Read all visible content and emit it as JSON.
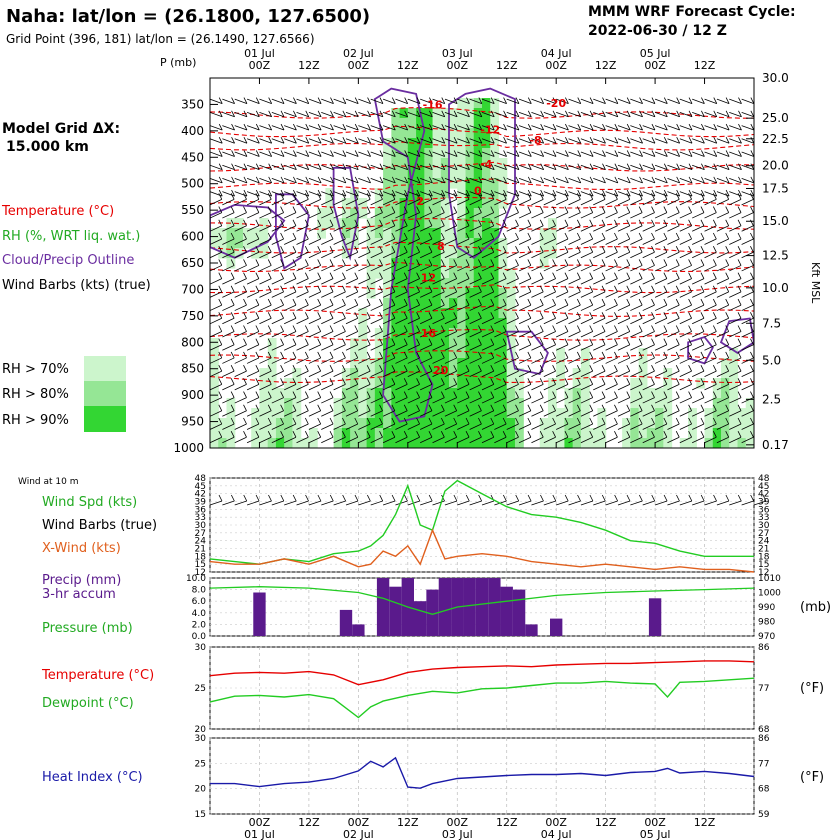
{
  "header": {
    "station": "Naha:  lat/lon = (26.1800, 127.6500)",
    "gridpoint": "Grid Point (396, 181) lat/lon = (26.1490, 127.6566)",
    "model": "MMM WRF Forecast Cycle:",
    "cycle": "2022-06-30 / 12  Z"
  },
  "time_axis": {
    "dates": [
      "01 Jul",
      "02 Jul",
      "03 Jul",
      "04 Jul",
      "05 Jul"
    ],
    "hours": [
      "00Z",
      "12Z",
      "00Z",
      "12Z",
      "00Z",
      "12Z",
      "00Z",
      "12Z",
      "00Z",
      "12Z"
    ]
  },
  "legend_left": {
    "grid_title": "Model Grid ΔX:",
    "grid_value": "15.000 km",
    "temperature": "Temperature (°C)",
    "rh": "RH (%, WRT liq. wat.)",
    "cloud": "Cloud/Precip Outline",
    "barbs": "Wind Barbs (kts) (true)",
    "rh70": "RH > 70%",
    "rh80": "RH > 80%",
    "rh90": "RH > 90%",
    "wind10m": "Wind at 10 m",
    "wind_spd": "Wind Spd (kts)",
    "wind_barbs": "Wind Barbs (true)",
    "xwind": "X-Wind (kts)",
    "precip1": "Precip (mm)",
    "precip2": "3-hr accum",
    "pressure": "Pressure (mb)",
    "temp2": "Temperature (°C)",
    "dew": "Dewpoint (°C)",
    "heat": "Heat Index (°C)"
  },
  "colors": {
    "temperature": "#e60000",
    "rh": "#22cc22",
    "cloud": "#6a2da0",
    "rh70": "#ccf5cc",
    "rh80": "#95e695",
    "rh90": "#33d633",
    "xwind": "#e0601e",
    "precip": "#5a1a8c",
    "heat": "#1a1aa8"
  },
  "chart_data": [
    {
      "type": "heatmap",
      "panel": "cross-section",
      "y_axis_label": "P (mb)",
      "y_ticks": [
        "350",
        "400",
        "450",
        "500",
        "550",
        "600",
        "650",
        "700",
        "750",
        "800",
        "850",
        "900",
        "950",
        "1000"
      ],
      "right_axis_label": "Kft MSL",
      "right_ticks": [
        "30.0",
        "25.0",
        "22.5",
        "20.0",
        "17.5",
        "15.0",
        "12.5",
        "10.0",
        "7.5",
        "5.0",
        "2.5",
        "0.17"
      ],
      "right_tick_pressure": [
        300,
        376,
        415,
        466,
        509,
        571,
        636,
        697,
        764,
        834,
        908,
        994
      ],
      "temperature_labels": [
        {
          "text": "-20",
          "hour": 72,
          "p": 355
        },
        {
          "text": "-16",
          "hour": 42,
          "p": 358
        },
        {
          "text": "-12",
          "hour": 56,
          "p": 405
        },
        {
          "text": "-8",
          "hour": 67,
          "p": 425
        },
        {
          "text": "-4",
          "hour": 55,
          "p": 470
        },
        {
          "text": "0",
          "hour": 53,
          "p": 520
        },
        {
          "text": "2",
          "hour": 39,
          "p": 540
        },
        {
          "text": "8",
          "hour": 44,
          "p": 625
        },
        {
          "text": "12",
          "hour": 41,
          "p": 685
        },
        {
          "text": "16",
          "hour": 41,
          "p": 790
        },
        {
          "text": "20",
          "hour": 44,
          "p": 860
        }
      ]
    },
    {
      "type": "line",
      "panel": "wind",
      "x_range": [
        -12,
        120
      ],
      "ylim": [
        12,
        48
      ],
      "y_ticks": [
        "48",
        "45",
        "42",
        "39",
        "36",
        "33",
        "30",
        "27",
        "24",
        "21",
        "18",
        "15",
        "12"
      ],
      "series": [
        {
          "name": "Wind Spd (kts)",
          "x": [
            -12,
            -6,
            0,
            6,
            12,
            18,
            24,
            27,
            30,
            33,
            36,
            39,
            42,
            45,
            48,
            54,
            60,
            66,
            72,
            78,
            84,
            90,
            96,
            102,
            108,
            114,
            120
          ],
          "values": [
            17,
            16,
            15,
            17,
            16,
            19,
            20,
            22,
            26,
            34,
            45,
            30,
            28,
            43,
            47,
            42,
            37,
            34,
            33,
            31,
            28,
            24,
            23,
            20,
            18,
            18,
            18
          ]
        },
        {
          "name": "X-Wind (kts)",
          "x": [
            -12,
            -6,
            0,
            6,
            12,
            18,
            24,
            27,
            30,
            33,
            36,
            39,
            42,
            45,
            48,
            54,
            60,
            66,
            72,
            78,
            84,
            90,
            96,
            102,
            108,
            114,
            120
          ],
          "values": [
            16,
            15,
            15,
            17,
            15,
            18,
            14,
            15,
            20,
            18,
            22,
            15,
            28,
            17,
            18,
            19,
            18,
            16,
            15,
            14,
            15,
            14,
            13,
            14,
            13,
            13,
            12
          ]
        }
      ]
    },
    {
      "type": "bar",
      "panel": "precip",
      "x_range": [
        -12,
        120
      ],
      "ylim": [
        0,
        10
      ],
      "y_ticks": [
        "10.0",
        "8.0",
        "6.0",
        "4.0",
        "2.0",
        "0.0"
      ],
      "right_ticks": [
        "1010",
        "1000",
        "990",
        "980",
        "970"
      ],
      "hours": [
        0,
        21,
        24,
        30,
        33,
        36,
        39,
        42,
        45,
        48,
        51,
        54,
        57,
        60,
        63,
        66,
        69,
        72,
        96
      ],
      "values": [
        7.5,
        4.5,
        2.0,
        10.0,
        8.5,
        10.0,
        6.0,
        8.0,
        10.0,
        10.0,
        10.0,
        10.0,
        10.0,
        8.5,
        8.0,
        2.0,
        0.0,
        3.0,
        6.5
      ],
      "pressure": {
        "x": [
          -12,
          0,
          12,
          24,
          30,
          36,
          42,
          48,
          60,
          72,
          84,
          96,
          108,
          120
        ],
        "values": [
          1003,
          1004,
          1003,
          1000,
          996,
          990,
          985,
          990,
          994,
          998,
          1000,
          1001,
          1002,
          1003
        ]
      }
    },
    {
      "type": "line",
      "panel": "temperature",
      "x_range": [
        -12,
        120
      ],
      "ylim": [
        20,
        30
      ],
      "y_ticks": [
        "30",
        "25",
        "20"
      ],
      "right_ticks": [
        "86",
        "77",
        "68"
      ],
      "series": [
        {
          "name": "Temperature (°C)",
          "x": [
            -12,
            -6,
            0,
            6,
            12,
            18,
            24,
            30,
            36,
            42,
            48,
            54,
            60,
            66,
            72,
            78,
            84,
            90,
            96,
            102,
            108,
            114,
            120
          ],
          "values": [
            26.5,
            26.8,
            26.9,
            26.8,
            27.0,
            26.6,
            25.4,
            26.0,
            26.9,
            27.3,
            27.5,
            27.6,
            27.7,
            27.6,
            27.8,
            27.9,
            28.0,
            28.0,
            28.1,
            28.2,
            28.3,
            28.3,
            28.2
          ]
        },
        {
          "name": "Dewpoint (°C)",
          "x": [
            -12,
            -6,
            0,
            6,
            12,
            18,
            24,
            27,
            30,
            36,
            42,
            48,
            54,
            60,
            66,
            72,
            78,
            84,
            90,
            96,
            99,
            102,
            108,
            114,
            120
          ],
          "values": [
            23.3,
            24.0,
            24.1,
            23.9,
            24.2,
            23.7,
            21.4,
            22.7,
            23.4,
            24.1,
            24.6,
            24.4,
            24.9,
            25.0,
            25.3,
            25.6,
            25.6,
            25.8,
            25.6,
            25.5,
            23.9,
            25.7,
            25.8,
            26.0,
            26.2
          ]
        }
      ]
    },
    {
      "type": "line",
      "panel": "heat-index",
      "x_range": [
        -12,
        120
      ],
      "ylim": [
        15,
        30
      ],
      "y_ticks": [
        "30",
        "25",
        "20",
        "15"
      ],
      "right_ticks": [
        "86",
        "77",
        "68",
        "59"
      ],
      "series": [
        {
          "name": "Heat Index (°C)",
          "x": [
            -12,
            -6,
            0,
            6,
            12,
            18,
            24,
            27,
            30,
            33,
            36,
            39,
            42,
            48,
            54,
            60,
            66,
            72,
            78,
            84,
            90,
            96,
            99,
            102,
            108,
            114,
            120
          ],
          "values": [
            21.0,
            21.0,
            20.4,
            21.0,
            21.3,
            22.0,
            23.5,
            25.4,
            24.3,
            26.1,
            20.3,
            20.1,
            21.0,
            22.0,
            22.3,
            22.6,
            22.8,
            22.8,
            23.0,
            22.6,
            23.2,
            23.4,
            24.0,
            23.1,
            23.4,
            23.0,
            22.4
          ]
        }
      ]
    }
  ]
}
